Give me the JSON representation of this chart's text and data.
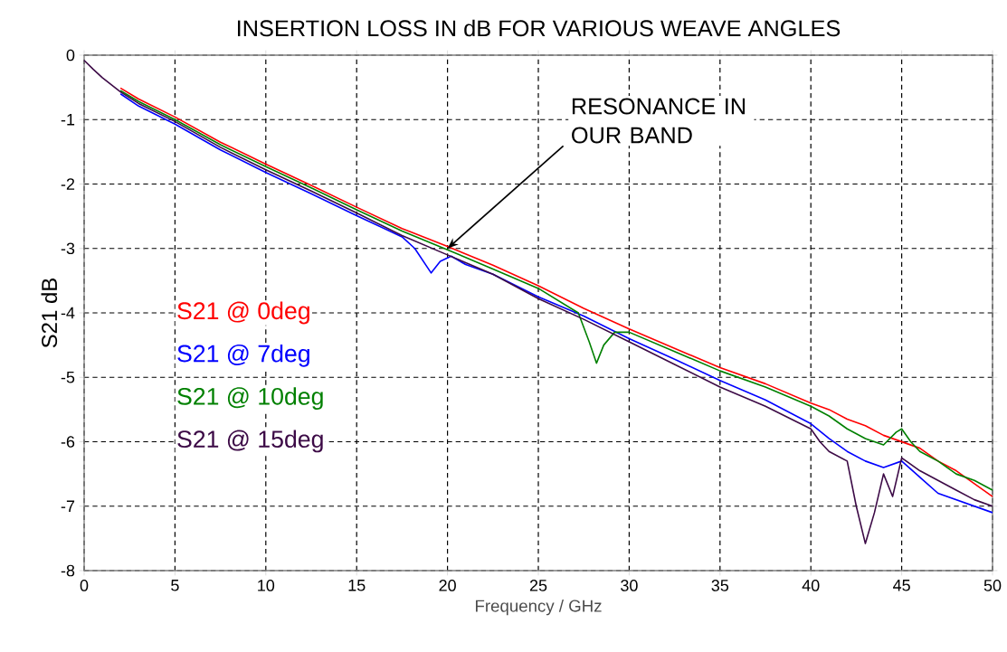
{
  "chart_data": {
    "type": "line",
    "title": "INSERTION LOSS IN dB FOR VARIOUS WEAVE ANGLES",
    "xlabel": "Frequency / GHz",
    "ylabel": "S21 dB",
    "xlim": [
      0,
      50
    ],
    "xticks": [
      0,
      5,
      10,
      15,
      20,
      25,
      30,
      35,
      40,
      45,
      50
    ],
    "ylim": [
      -8,
      0
    ],
    "yticks": [
      -8,
      -7,
      -6,
      -5,
      -4,
      -3,
      -2,
      -1,
      0
    ],
    "grid": true,
    "legend": "left",
    "marker": "none",
    "line_style": "solid",
    "annotations": [
      {
        "text": "RESONANCE IN OUR BAND",
        "x": 20,
        "y": -3
      }
    ],
    "series": [
      {
        "name": "S21 @ 0deg",
        "color": "#ff0000",
        "x": [
          2,
          3,
          5,
          7.5,
          10,
          12.5,
          15,
          17.5,
          20,
          22.5,
          25,
          27.5,
          30,
          32.5,
          35,
          37.5,
          40,
          41,
          42,
          43,
          44,
          45,
          46,
          47,
          48,
          49,
          50
        ],
        "values": [
          -0.51,
          -0.68,
          -0.96,
          -1.35,
          -1.69,
          -2.02,
          -2.36,
          -2.69,
          -2.97,
          -3.26,
          -3.58,
          -3.93,
          -4.25,
          -4.55,
          -4.85,
          -5.1,
          -5.4,
          -5.5,
          -5.65,
          -5.75,
          -5.9,
          -6.0,
          -6.1,
          -6.3,
          -6.45,
          -6.65,
          -6.85
        ]
      },
      {
        "name": "S21 @ 7deg",
        "color": "#0000ff",
        "x": [
          2,
          3,
          5,
          7.5,
          10,
          12.5,
          15,
          17.5,
          18.2,
          19.1,
          19.6,
          20.2,
          21,
          22.5,
          25,
          27.5,
          30,
          32.5,
          35,
          37.5,
          40,
          41,
          42,
          43,
          44,
          45,
          46,
          47,
          48,
          49,
          50
        ],
        "values": [
          -0.6,
          -0.79,
          -1.07,
          -1.47,
          -1.82,
          -2.15,
          -2.49,
          -2.82,
          -3.0,
          -3.38,
          -3.2,
          -3.12,
          -3.25,
          -3.4,
          -3.75,
          -4.05,
          -4.4,
          -4.72,
          -5.05,
          -5.35,
          -5.72,
          -5.95,
          -6.15,
          -6.3,
          -6.4,
          -6.3,
          -6.55,
          -6.8,
          -6.9,
          -7.0,
          -7.1
        ]
      },
      {
        "name": "S21 @ 10deg",
        "color": "#008000",
        "x": [
          2,
          3,
          5,
          7.5,
          10,
          12.5,
          15,
          17.5,
          20,
          22.5,
          25,
          27.2,
          27.8,
          28.2,
          28.6,
          29.2,
          30,
          32.5,
          35,
          37.5,
          40,
          41,
          42,
          43,
          44,
          44.7,
          45,
          45.5,
          46,
          47,
          48,
          49,
          50
        ],
        "values": [
          -0.55,
          -0.72,
          -1.0,
          -1.39,
          -1.73,
          -2.06,
          -2.4,
          -2.73,
          -3.02,
          -3.32,
          -3.62,
          -4.0,
          -4.45,
          -4.78,
          -4.5,
          -4.3,
          -4.3,
          -4.6,
          -4.9,
          -5.15,
          -5.45,
          -5.6,
          -5.8,
          -5.95,
          -6.05,
          -5.85,
          -5.8,
          -6.0,
          -6.15,
          -6.3,
          -6.5,
          -6.6,
          -6.75
        ]
      },
      {
        "name": "S21 @ 15deg",
        "color": "#3c0a46",
        "x": [
          0,
          0.5,
          1,
          2,
          3,
          5,
          7.5,
          10,
          12.5,
          15,
          17.5,
          20,
          22.5,
          25,
          27.5,
          30,
          32.5,
          35,
          37.5,
          40,
          40.5,
          41,
          42,
          42.5,
          43,
          43.5,
          44,
          44.5,
          45,
          46,
          47,
          48,
          49,
          50
        ],
        "values": [
          -0.08,
          -0.22,
          -0.35,
          -0.57,
          -0.75,
          -1.03,
          -1.43,
          -1.78,
          -2.11,
          -2.45,
          -2.8,
          -3.1,
          -3.4,
          -3.78,
          -4.1,
          -4.45,
          -4.8,
          -5.15,
          -5.45,
          -5.8,
          -6.0,
          -6.15,
          -6.3,
          -7.0,
          -7.58,
          -7.1,
          -6.5,
          -6.85,
          -6.25,
          -6.45,
          -6.6,
          -6.75,
          -6.9,
          -7.0
        ]
      }
    ]
  }
}
